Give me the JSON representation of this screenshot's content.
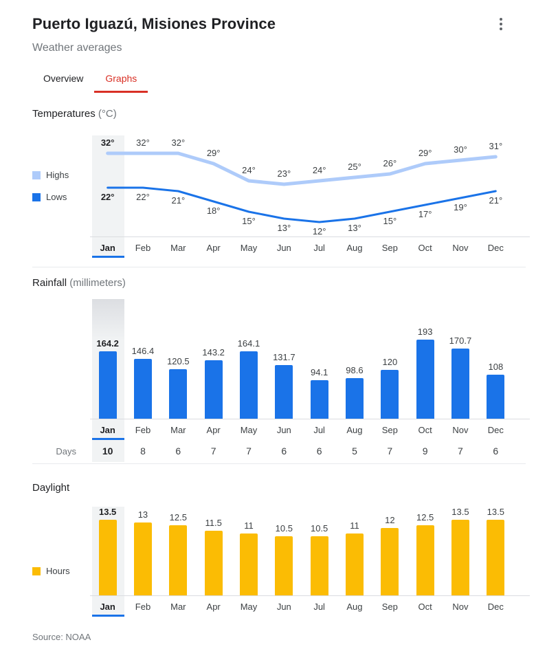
{
  "header": {
    "title": "Puerto Iguazú, Misiones Province",
    "subtitle": "Weather averages"
  },
  "tabs": [
    {
      "label": "Overview",
      "active": false
    },
    {
      "label": "Graphs",
      "active": true
    }
  ],
  "months": [
    "Jan",
    "Feb",
    "Mar",
    "Apr",
    "May",
    "Jun",
    "Jul",
    "Aug",
    "Sep",
    "Oct",
    "Nov",
    "Dec"
  ],
  "colors": {
    "active_tab": "#d93025",
    "selection": "#1a73e8",
    "highlight_bg": "#f1f3f4",
    "highs_line": "#aecbfa",
    "lows_line": "#1a73e8",
    "rain_bar": "#1a73e8",
    "daylight_bar": "#fbbc04"
  },
  "sections": {
    "temperatures": {
      "title": "Temperatures",
      "unit": "(°C)",
      "legend": [
        {
          "label": "Highs"
        },
        {
          "label": "Lows"
        }
      ]
    },
    "rainfall": {
      "title": "Rainfall",
      "unit": "(millimeters)",
      "days_label": "Days"
    },
    "daylight": {
      "title": "Daylight",
      "legend": [
        {
          "label": "Hours"
        }
      ]
    }
  },
  "source": "Source: NOAA",
  "chart_data": [
    {
      "type": "line",
      "title": "Temperatures (°C)",
      "categories": [
        "Jan",
        "Feb",
        "Mar",
        "Apr",
        "May",
        "Jun",
        "Jul",
        "Aug",
        "Sep",
        "Oct",
        "Nov",
        "Dec"
      ],
      "series": [
        {
          "name": "Highs",
          "color": "#aecbfa",
          "values": [
            32,
            32,
            32,
            29,
            24,
            23,
            24,
            25,
            26,
            29,
            30,
            31
          ]
        },
        {
          "name": "Lows",
          "color": "#1a73e8",
          "values": [
            22,
            22,
            21,
            18,
            15,
            13,
            12,
            13,
            15,
            17,
            19,
            21
          ]
        }
      ],
      "value_suffix": "°",
      "ylabel": "°C",
      "highlighted_category": "Jan",
      "legend_position": "left"
    },
    {
      "type": "bar",
      "title": "Rainfall (millimeters)",
      "categories": [
        "Jan",
        "Feb",
        "Mar",
        "Apr",
        "May",
        "Jun",
        "Jul",
        "Aug",
        "Sep",
        "Oct",
        "Nov",
        "Dec"
      ],
      "values": [
        164.2,
        146.4,
        120.5,
        143.2,
        164.1,
        131.7,
        94.1,
        98.6,
        120,
        193,
        170.7,
        108
      ],
      "days": [
        10,
        8,
        6,
        7,
        7,
        6,
        6,
        5,
        7,
        9,
        7,
        6
      ],
      "ylabel": "millimeters",
      "highlighted_category": "Jan"
    },
    {
      "type": "bar",
      "title": "Daylight (Hours)",
      "categories": [
        "Jan",
        "Feb",
        "Mar",
        "Apr",
        "May",
        "Jun",
        "Jul",
        "Aug",
        "Sep",
        "Oct",
        "Nov",
        "Dec"
      ],
      "values": [
        13.5,
        13,
        12.5,
        11.5,
        11,
        10.5,
        10.5,
        11,
        12,
        12.5,
        13.5,
        13.5
      ],
      "ylabel": "Hours",
      "highlighted_category": "Jan"
    }
  ]
}
